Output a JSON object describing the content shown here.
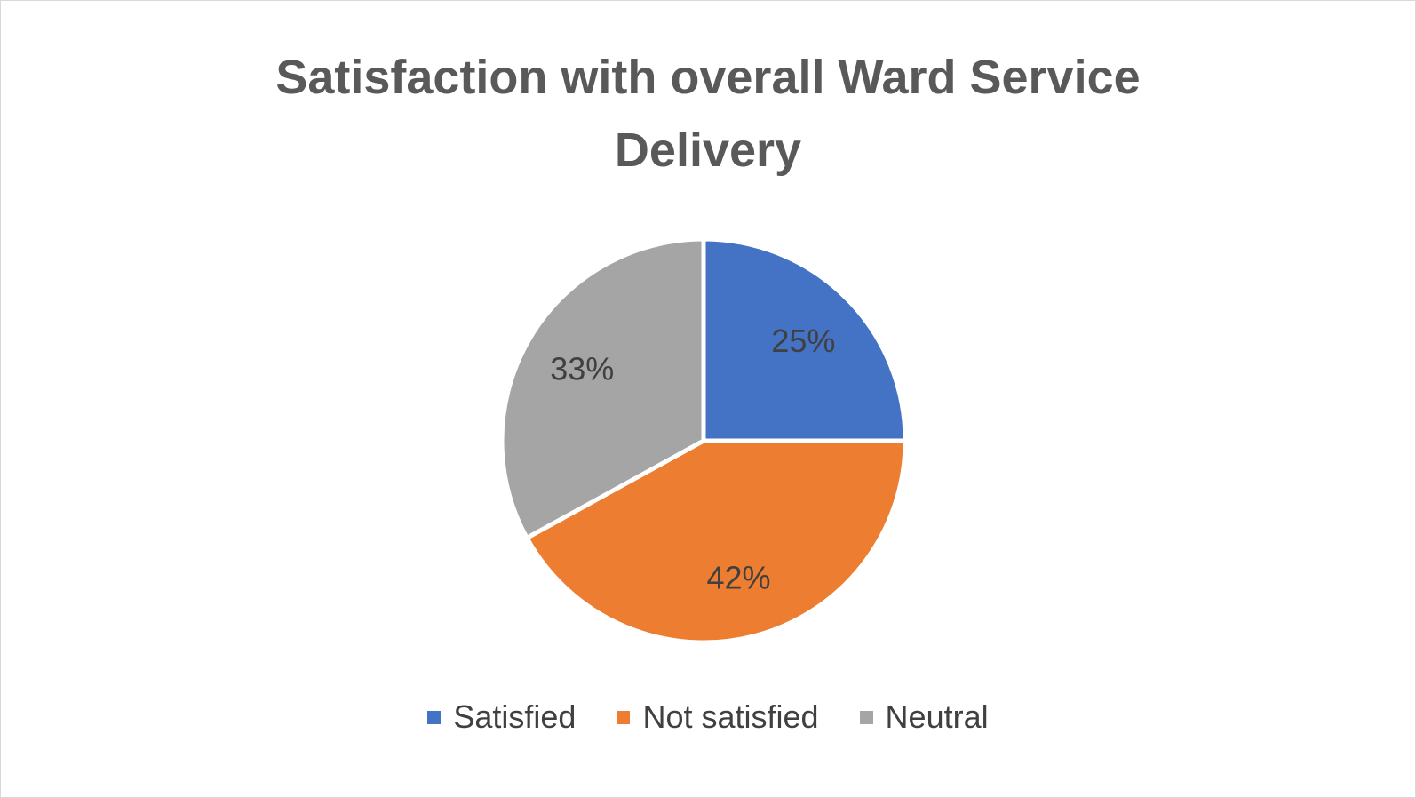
{
  "chart_data": {
    "type": "pie",
    "title": "Satisfaction with overall Ward Service Delivery",
    "categories": [
      "Satisfied",
      "Not satisfied",
      "Neutral"
    ],
    "values": [
      25,
      42,
      33
    ],
    "labels": [
      "25%",
      "42%",
      "33%"
    ],
    "colors": [
      "#4472c4",
      "#ed7d31",
      "#a5a5a5"
    ],
    "start_angle": "top (12 o'clock), clockwise",
    "legend_position": "bottom"
  }
}
